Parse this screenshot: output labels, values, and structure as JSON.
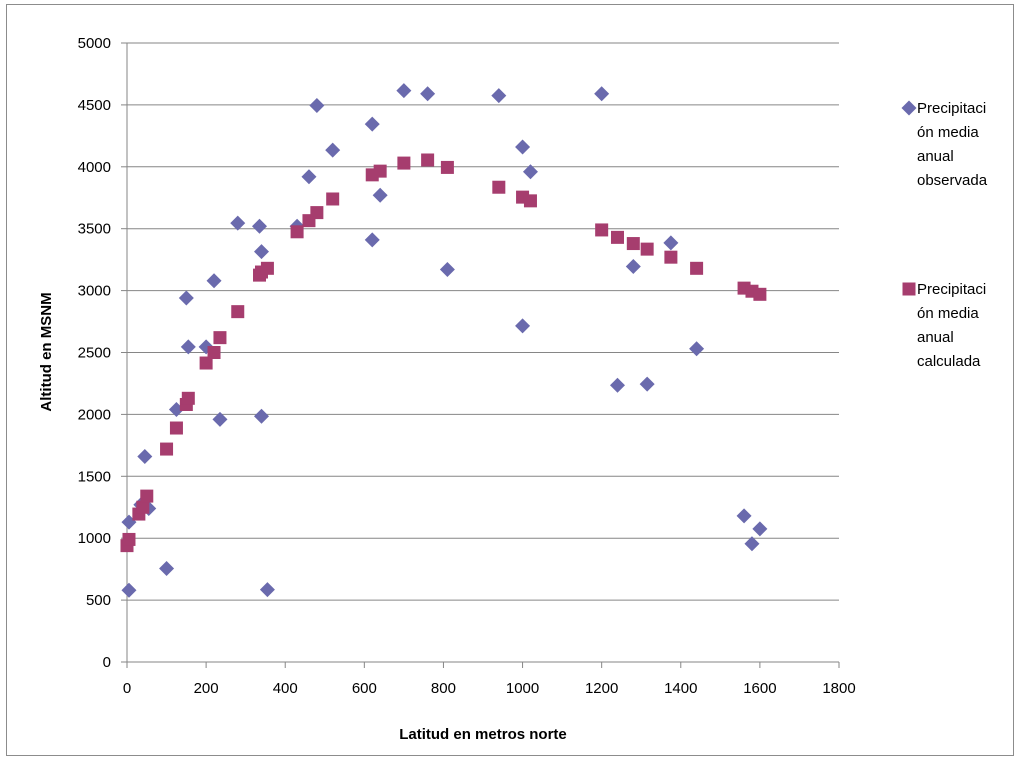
{
  "chart_data": {
    "type": "scatter",
    "title": "",
    "xlabel": "Latitud en metros norte",
    "ylabel": "Altitud en MSNM",
    "xlim": [
      0,
      1800
    ],
    "ylim": [
      0,
      5000
    ],
    "x_ticks": [
      "0",
      "200",
      "400",
      "600",
      "800",
      "1000",
      "1200",
      "1400",
      "1600",
      "1800"
    ],
    "y_ticks": [
      "0",
      "500",
      "1000",
      "1500",
      "2000",
      "2500",
      "3000",
      "3500",
      "4000",
      "4500",
      "5000"
    ],
    "grid": "horizontal",
    "legend_position": "right",
    "series": [
      {
        "name": "Precipitación media anual observada",
        "legend_lines": [
          "Precipitaci",
          "ón media",
          "anual",
          "observada"
        ],
        "marker": "diamond",
        "color": "#6a6aad",
        "points": [
          [
            5,
            580
          ],
          [
            5,
            1130
          ],
          [
            35,
            1270
          ],
          [
            45,
            1660
          ],
          [
            55,
            1240
          ],
          [
            100,
            755
          ],
          [
            125,
            2040
          ],
          [
            150,
            2940
          ],
          [
            155,
            2545
          ],
          [
            200,
            2545
          ],
          [
            220,
            3080
          ],
          [
            235,
            1960
          ],
          [
            280,
            3545
          ],
          [
            335,
            3520
          ],
          [
            340,
            1985
          ],
          [
            340,
            3315
          ],
          [
            355,
            585
          ],
          [
            430,
            3520
          ],
          [
            460,
            3920
          ],
          [
            480,
            4495
          ],
          [
            520,
            4135
          ],
          [
            620,
            4345
          ],
          [
            620,
            3410
          ],
          [
            640,
            3770
          ],
          [
            700,
            4615
          ],
          [
            760,
            4590
          ],
          [
            810,
            3170
          ],
          [
            940,
            4575
          ],
          [
            1000,
            4160
          ],
          [
            1000,
            2715
          ],
          [
            1020,
            3960
          ],
          [
            1200,
            4590
          ],
          [
            1240,
            2235
          ],
          [
            1280,
            3195
          ],
          [
            1315,
            2245
          ],
          [
            1375,
            3385
          ],
          [
            1440,
            2530
          ],
          [
            1560,
            1180
          ],
          [
            1580,
            955
          ],
          [
            1600,
            1075
          ]
        ]
      },
      {
        "name": "Precipitación media anual calculada",
        "legend_lines": [
          "Precipitaci",
          "ón media",
          "anual",
          "calculada"
        ],
        "marker": "square",
        "color": "#a63d6e",
        "points": [
          [
            0,
            940
          ],
          [
            5,
            990
          ],
          [
            30,
            1195
          ],
          [
            40,
            1250
          ],
          [
            50,
            1340
          ],
          [
            100,
            1720
          ],
          [
            125,
            1890
          ],
          [
            150,
            2080
          ],
          [
            155,
            2130
          ],
          [
            200,
            2415
          ],
          [
            220,
            2500
          ],
          [
            235,
            2620
          ],
          [
            280,
            2830
          ],
          [
            335,
            3125
          ],
          [
            340,
            3150
          ],
          [
            355,
            3180
          ],
          [
            430,
            3475
          ],
          [
            460,
            3565
          ],
          [
            480,
            3630
          ],
          [
            520,
            3740
          ],
          [
            620,
            3935
          ],
          [
            640,
            3965
          ],
          [
            700,
            4030
          ],
          [
            760,
            4055
          ],
          [
            810,
            3995
          ],
          [
            940,
            3835
          ],
          [
            1000,
            3755
          ],
          [
            1020,
            3725
          ],
          [
            1200,
            3490
          ],
          [
            1240,
            3430
          ],
          [
            1280,
            3380
          ],
          [
            1315,
            3335
          ],
          [
            1375,
            3270
          ],
          [
            1440,
            3180
          ],
          [
            1560,
            3020
          ],
          [
            1580,
            2995
          ],
          [
            1600,
            2970
          ]
        ]
      }
    ]
  }
}
